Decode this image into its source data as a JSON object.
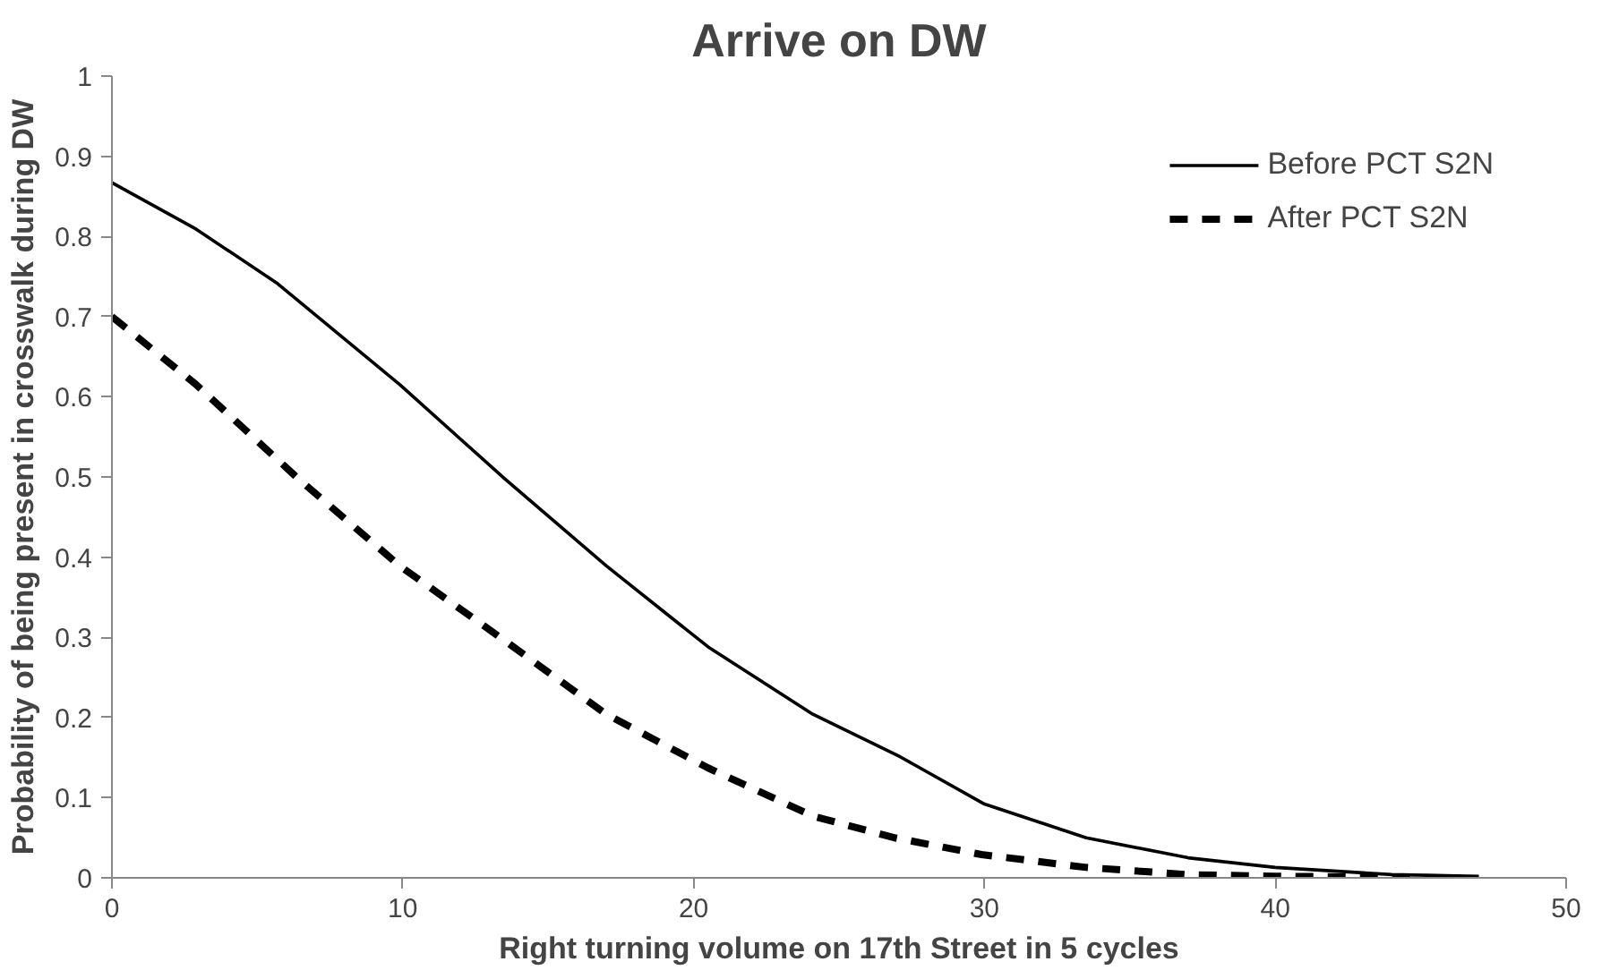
{
  "chart_data": {
    "type": "line",
    "title": "Arrive on DW",
    "xlabel": "Right turning volume on 17th Street in 5 cycles",
    "ylabel": "Probability of being present in crosswalk during DW",
    "xlim": [
      0,
      50
    ],
    "xticks": [
      0,
      10,
      20,
      30,
      40,
      50
    ],
    "ylim": [
      0,
      1
    ],
    "yticks": [
      0,
      0.1,
      0.2,
      0.3,
      0.4,
      0.5,
      0.6,
      0.7,
      0.8,
      0.9,
      1
    ],
    "grid": false,
    "legend": "top right",
    "series": [
      {
        "name": "Before PCT S2N",
        "color": "#000000",
        "line_style": "solid",
        "x": [
          0,
          2.9,
          5.7,
          9.9,
          13.5,
          17.0,
          20.5,
          24.1,
          27.1,
          30,
          33.5,
          37,
          40,
          44,
          47
        ],
        "values": [
          0.867,
          0.809,
          0.741,
          0.615,
          0.498,
          0.389,
          0.288,
          0.204,
          0.151,
          0.092,
          0.05,
          0.025,
          0.013,
          0.004,
          0.002
        ]
      },
      {
        "name": "After PCT S2N",
        "color": "#000000",
        "line_style": "dashed",
        "x": [
          0,
          2.9,
          6.4,
          9.9,
          13.5,
          17.0,
          20.5,
          24.1,
          26.9,
          29.9,
          33.5,
          37,
          40,
          46
        ],
        "values": [
          0.7,
          0.615,
          0.498,
          0.389,
          0.296,
          0.204,
          0.137,
          0.077,
          0.05,
          0.029,
          0.013,
          0.004,
          0.002,
          0.0
        ]
      }
    ]
  }
}
